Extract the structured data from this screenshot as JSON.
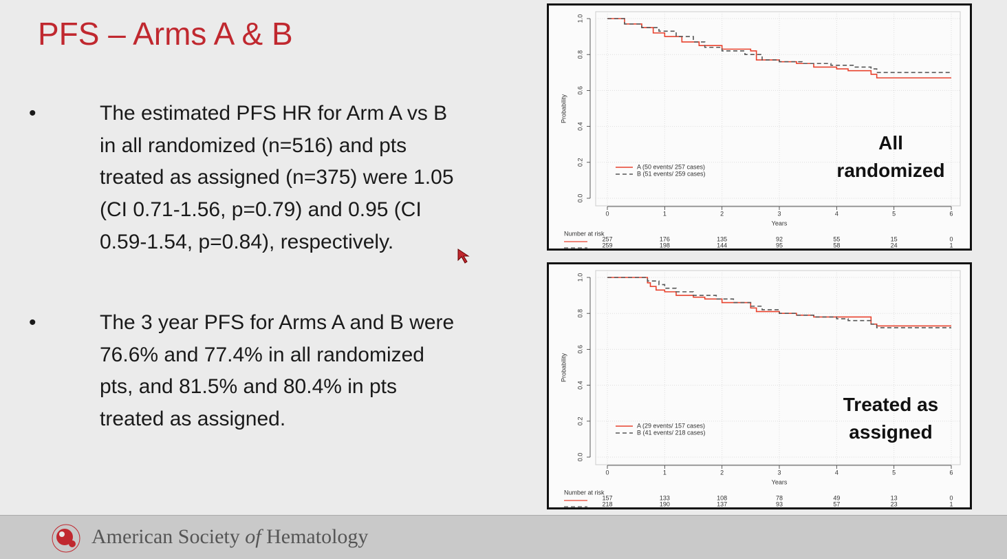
{
  "slide": {
    "title": "PFS – Arms A & B",
    "bullets": [
      "The estimated PFS HR for Arm A vs B in all randomized (n=516) and pts treated as assigned (n=375) were 1.05 (CI 0.71-1.56, p=0.79) and 0.95 (CI 0.59-1.54, p=0.84), respectively.",
      "The 3 year PFS for Arms A and B were 76.6% and 77.4% in all randomized pts, and 81.5% and 80.4% in pts treated as assigned."
    ]
  },
  "chart_data": [
    {
      "type": "line",
      "drawstyle": "steps-post",
      "annotation": "All randomized",
      "xlabel": "Years",
      "ylabel": "Probability",
      "xlim": [
        0,
        6
      ],
      "ylim": [
        0,
        1
      ],
      "xticks": [
        0,
        1,
        2,
        3,
        4,
        5,
        6
      ],
      "yticks": [
        {
          "value": 0,
          "label": "0.0"
        },
        0.2,
        0.4,
        0.6,
        0.8,
        {
          "value": 1,
          "label": "1.0"
        }
      ],
      "grid": true,
      "series": [
        {
          "name": "A  (50 events/ 257 cases)",
          "color": "#e8412c",
          "line_style": "solid",
          "x": [
            0,
            0.3,
            0.6,
            0.8,
            1.0,
            1.3,
            1.6,
            2.0,
            2.5,
            2.6,
            3.0,
            3.3,
            3.6,
            4.0,
            4.2,
            4.6,
            4.7,
            6
          ],
          "values": [
            1.0,
            0.97,
            0.95,
            0.92,
            0.9,
            0.87,
            0.85,
            0.83,
            0.82,
            0.77,
            0.76,
            0.75,
            0.73,
            0.72,
            0.71,
            0.69,
            0.67,
            0.67
          ]
        },
        {
          "name": "B  (51 events/ 259 cases)",
          "color": "#555555",
          "line_style": "dashed",
          "x": [
            0,
            0.3,
            0.6,
            0.9,
            1.2,
            1.5,
            1.7,
            2.0,
            2.4,
            2.7,
            3.0,
            3.4,
            3.9,
            4.3,
            4.6,
            4.7,
            6
          ],
          "values": [
            1.0,
            0.97,
            0.95,
            0.93,
            0.9,
            0.87,
            0.84,
            0.82,
            0.8,
            0.77,
            0.76,
            0.75,
            0.74,
            0.73,
            0.72,
            0.7,
            0.7
          ]
        }
      ],
      "risk_table": {
        "title": "Number at risk",
        "rows": [
          [
            257,
            176,
            135,
            92,
            55,
            15,
            0
          ],
          [
            259,
            198,
            144,
            95,
            58,
            24,
            1
          ]
        ]
      }
    },
    {
      "type": "line",
      "drawstyle": "steps-post",
      "annotation": "Treated as assigned",
      "xlabel": "Years",
      "ylabel": "Probability",
      "xlim": [
        0,
        6
      ],
      "ylim": [
        0,
        1
      ],
      "xticks": [
        0,
        1,
        2,
        3,
        4,
        5,
        6
      ],
      "yticks": [
        {
          "value": 0,
          "label": "0.0"
        },
        0.2,
        0.4,
        0.6,
        0.8,
        {
          "value": 1,
          "label": "1.0"
        }
      ],
      "grid": true,
      "series": [
        {
          "name": "A  (29 events/ 157 cases)",
          "color": "#e8412c",
          "line_style": "solid",
          "x": [
            0,
            0.7,
            0.75,
            0.85,
            1.0,
            1.2,
            1.5,
            1.7,
            2.0,
            2.5,
            2.6,
            3.0,
            3.3,
            3.6,
            3.8,
            4.6,
            4.7,
            6
          ],
          "values": [
            1.0,
            0.97,
            0.95,
            0.93,
            0.92,
            0.9,
            0.89,
            0.88,
            0.86,
            0.83,
            0.81,
            0.8,
            0.79,
            0.78,
            0.78,
            0.74,
            0.73,
            0.73
          ]
        },
        {
          "name": "B  (41 events/ 218 cases)",
          "color": "#555555",
          "line_style": "dashed",
          "x": [
            0,
            0.7,
            0.9,
            1.0,
            1.2,
            1.5,
            1.9,
            2.2,
            2.5,
            2.7,
            3.0,
            3.3,
            3.6,
            4.0,
            4.2,
            4.6,
            4.7,
            6
          ],
          "values": [
            1.0,
            0.98,
            0.96,
            0.94,
            0.92,
            0.9,
            0.88,
            0.86,
            0.84,
            0.82,
            0.8,
            0.79,
            0.78,
            0.77,
            0.76,
            0.74,
            0.72,
            0.72
          ]
        }
      ],
      "risk_table": {
        "title": "Number at risk",
        "rows": [
          [
            157,
            133,
            108,
            78,
            49,
            13,
            0
          ],
          [
            218,
            190,
            137,
            93,
            57,
            23,
            1
          ]
        ]
      }
    }
  ],
  "footer": {
    "org_start": "American Society",
    "org_italic": "of",
    "org_end": "Hematology"
  }
}
